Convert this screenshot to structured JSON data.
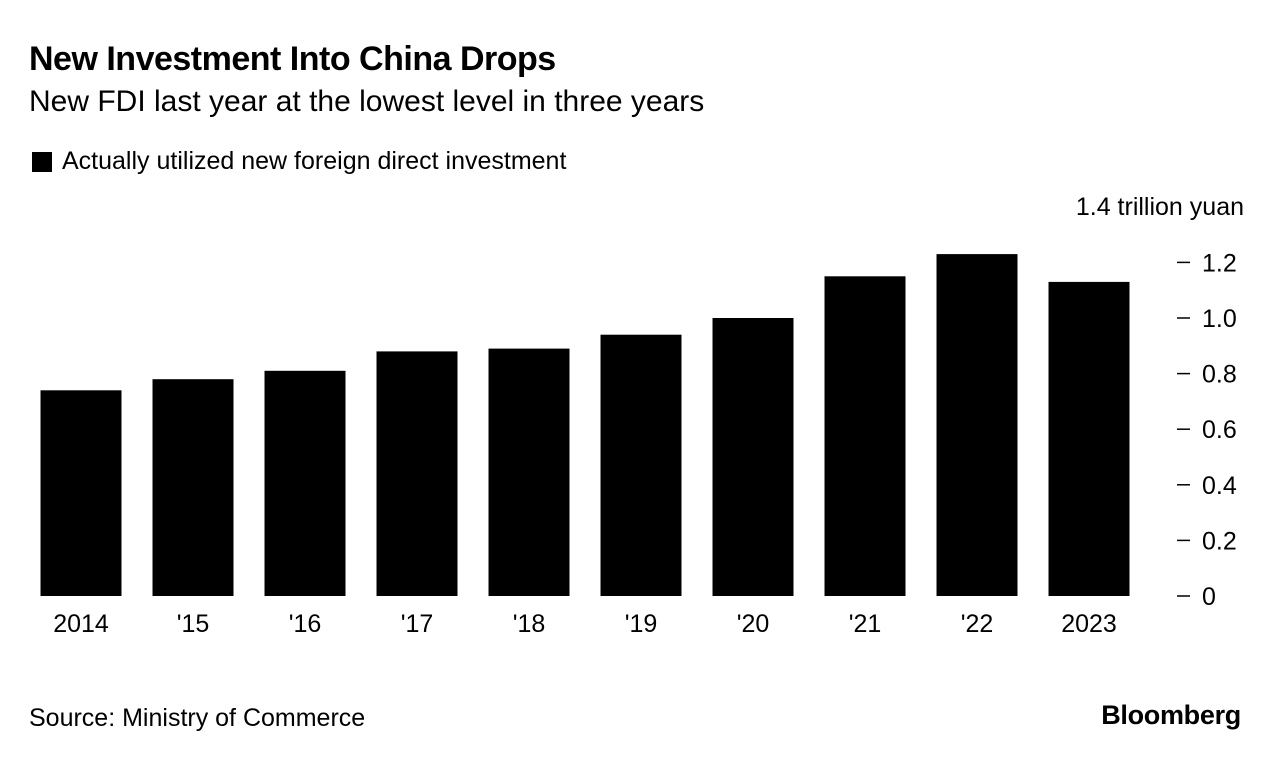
{
  "chart_data": {
    "type": "bar",
    "title": "New Investment Into China Drops",
    "subtitle": "New FDI last year at the lowest level in three years",
    "legend": [
      {
        "label": "Actually utilized new foreign direct investment",
        "color": "#000000"
      }
    ],
    "y_unit_label": "1.4 trillion yuan",
    "categories": [
      "2014",
      "'15",
      "'16",
      "'17",
      "'18",
      "'19",
      "'20",
      "'21",
      "'22",
      "2023"
    ],
    "values": [
      0.74,
      0.78,
      0.81,
      0.88,
      0.89,
      0.94,
      1.0,
      1.15,
      1.23,
      1.13
    ],
    "ylim": [
      0,
      1.4
    ],
    "y_ticks": [
      0,
      0.2,
      0.4,
      0.6,
      0.8,
      1.0,
      1.2
    ],
    "y_tick_labels": [
      "0",
      "0.2",
      "0.4",
      "0.6",
      "0.8",
      "1.0",
      "1.2"
    ],
    "y_axis_position": "right",
    "grid": false,
    "bar_color": "#000000"
  },
  "source": "Source: Ministry of Commerce",
  "brand": "Bloomberg"
}
